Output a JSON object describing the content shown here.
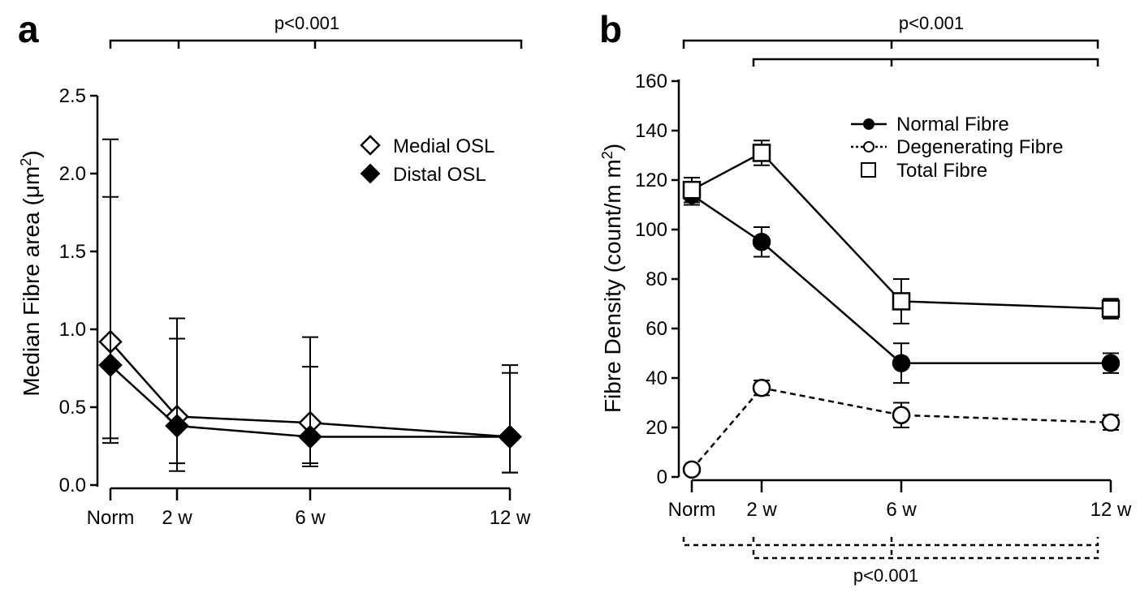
{
  "chart_data": [
    {
      "panel": "a",
      "type": "line",
      "ylabel": "Median Fibre area (μm²)",
      "ylabel_main": "Median Fibre area (μm",
      "ylabel_sup": "2",
      "ylabel_end": ")",
      "categories": [
        "Norm",
        "2 w",
        "6 w",
        "12 w"
      ],
      "x": [
        0,
        2,
        6,
        12
      ],
      "ylim": [
        0,
        2.5
      ],
      "yticks": [
        "0.0",
        "0.5",
        "1.0",
        "1.5",
        "2.0",
        "2.5"
      ],
      "ytick_values": [
        0,
        0.5,
        1.0,
        1.5,
        2.0,
        2.5
      ],
      "legend_position": "top-right",
      "series": [
        {
          "name": "Medial OSL",
          "marker": "open-diamond",
          "line": "solid",
          "values": [
            0.92,
            0.44,
            0.4,
            0.31
          ],
          "err_low": [
            0.3,
            0.14,
            0.14,
            0.08
          ],
          "err_high": [
            2.22,
            1.07,
            0.95,
            0.77
          ]
        },
        {
          "name": "Distal OSL",
          "marker": "filled-diamond",
          "line": "solid",
          "values": [
            0.77,
            0.38,
            0.31,
            0.31
          ],
          "err_low": [
            0.27,
            0.09,
            0.12,
            0.08
          ],
          "err_high": [
            1.85,
            0.94,
            0.76,
            0.72
          ]
        }
      ],
      "annotations": [
        {
          "text": "p<0.001",
          "from": "Norm",
          "ticks": [
            "Norm",
            "2 w",
            "6 w",
            "12 w"
          ],
          "style": "solid"
        }
      ]
    },
    {
      "panel": "b",
      "type": "line",
      "ylabel": "Fibre Density (count/mm²)",
      "ylabel_main": "Fibre Density (count/m m",
      "ylabel_sup": "2",
      "ylabel_end": ")",
      "categories": [
        "Norm",
        "2 w",
        "6 w",
        "12 w"
      ],
      "x": [
        0,
        2,
        6,
        12
      ],
      "ylim": [
        0,
        160
      ],
      "yticks": [
        "0",
        "20",
        "40",
        "60",
        "80",
        "100",
        "120",
        "140",
        "160"
      ],
      "ytick_values": [
        0,
        20,
        40,
        60,
        80,
        100,
        120,
        140,
        160
      ],
      "legend_position": "top-right",
      "series": [
        {
          "name": "Normal Fibre",
          "marker": "filled-circle",
          "line": "solid",
          "values": [
            114,
            95,
            46,
            46
          ],
          "err_low": [
            110,
            89,
            38,
            42
          ],
          "err_high": [
            118,
            101,
            54,
            50
          ]
        },
        {
          "name": "Degenerating Fibre",
          "marker": "open-circle",
          "line": "dashed",
          "values": [
            3,
            36,
            25,
            22
          ],
          "err_low": [
            3,
            33,
            20,
            19
          ],
          "err_high": [
            3,
            39,
            30,
            25
          ]
        },
        {
          "name": "Total Fibre",
          "marker": "open-square",
          "line": "solid",
          "values": [
            116,
            131,
            71,
            68
          ],
          "err_low": [
            111,
            126,
            62,
            64
          ],
          "err_high": [
            121,
            136,
            80,
            72
          ]
        }
      ],
      "annotations": [
        {
          "text": "p<0.001",
          "from": "Norm",
          "ticks": [
            "Norm",
            "6 w",
            "12 w"
          ],
          "style": "solid"
        },
        {
          "text": "",
          "from": "2 w",
          "ticks": [
            "2 w",
            "6 w",
            "12 w"
          ],
          "style": "solid"
        },
        {
          "text": "",
          "from": "Norm",
          "ticks": [
            "Norm",
            "2 w",
            "6 w",
            "12 w"
          ],
          "style": "dashed"
        },
        {
          "text": "p<0.001",
          "from": "2 w",
          "ticks": [
            "2 w",
            "12 w"
          ],
          "style": "dashed"
        }
      ]
    }
  ]
}
